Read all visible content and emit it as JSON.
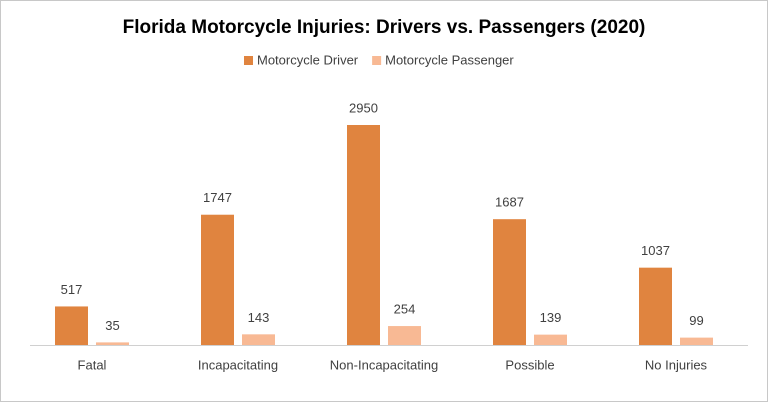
{
  "chart_data": {
    "type": "bar",
    "title": "Florida Motorcycle Injuries: Drivers vs. Passengers (2020)",
    "categories": [
      "Fatal",
      "Incapacitating",
      "Non-Incapacitating",
      "Possible",
      "No Injuries"
    ],
    "series": [
      {
        "name": "Motorcycle Driver",
        "color": "#e0843f",
        "values": [
          517,
          1747,
          2950,
          1687,
          1037
        ]
      },
      {
        "name": "Motorcycle Passenger",
        "color": "#f8b994",
        "values": [
          35,
          143,
          254,
          139,
          99
        ]
      }
    ],
    "legend": "top"
  }
}
